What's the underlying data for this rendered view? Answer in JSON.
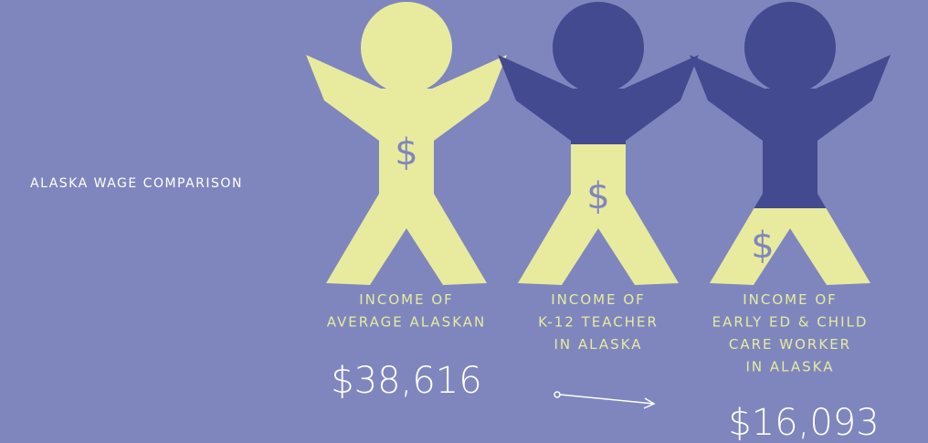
{
  "title": "ALASKA WAGE COMPARISON",
  "symbol": "$",
  "figures": [
    {
      "label": [
        "INCOME OF",
        "AVERAGE ALASKAN"
      ],
      "amount": "$38,616"
    },
    {
      "label": [
        "INCOME OF",
        "K-12 TEACHER",
        "IN ALASKA"
      ]
    },
    {
      "label": [
        "INCOME OF",
        "EARLY ED & CHILD",
        "CARE WORKER",
        "IN ALASKA"
      ],
      "amount": "$16,093"
    }
  ]
}
